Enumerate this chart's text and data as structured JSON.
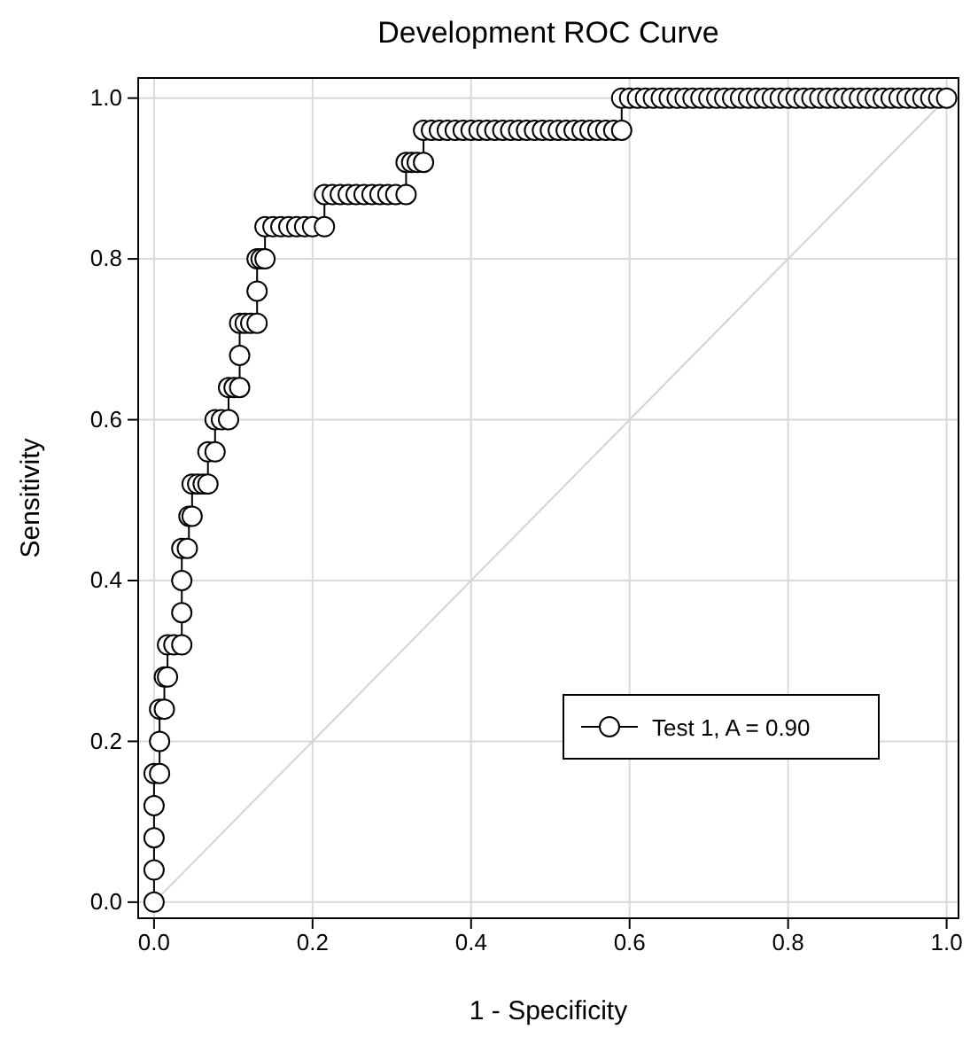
{
  "chart_data": {
    "type": "step",
    "title": "Development ROC Curve",
    "xlabel": "1 - Specificity",
    "ylabel": "Sensitivity",
    "xlim": [
      -0.02,
      1.015
    ],
    "ylim": [
      -0.02,
      1.025
    ],
    "xticks": [
      {
        "value": 0,
        "label": "0.0"
      },
      {
        "value": 0.2,
        "label": "0.2"
      },
      {
        "value": 0.4,
        "label": "0.4"
      },
      {
        "value": 0.6,
        "label": "0.6"
      },
      {
        "value": 0.8,
        "label": "0.8"
      },
      {
        "value": 1,
        "label": "1.0"
      }
    ],
    "yticks": [
      {
        "value": 0,
        "label": "0.0"
      },
      {
        "value": 0.2,
        "label": "0.2"
      },
      {
        "value": 0.4,
        "label": "0.4"
      },
      {
        "value": 0.6,
        "label": "0.6"
      },
      {
        "value": 0.8,
        "label": "0.8"
      },
      {
        "value": 1,
        "label": "1.0"
      }
    ],
    "grid": true,
    "legend": "bottom right",
    "series": [
      {
        "type": "line",
        "color": "#d3d3d3",
        "marker": "none",
        "x": [
          0,
          1
        ],
        "values": [
          0,
          1
        ]
      },
      {
        "name": "Test 1, A = 0.90",
        "color": "#000000",
        "marker": "circle",
        "x": [
          0,
          0,
          0,
          0,
          0,
          0.007,
          0.007,
          0.007,
          0.013,
          0.013,
          0.017,
          0.017,
          0.025,
          0.035,
          0.035,
          0.035,
          0.035,
          0.042,
          0.044,
          0.048,
          0.048,
          0.055,
          0.062,
          0.068,
          0.068,
          0.077,
          0.077,
          0.085,
          0.094,
          0.094,
          0.101,
          0.108,
          0.108,
          0.108,
          0.115,
          0.122,
          0.13,
          0.13,
          0.13,
          0.135,
          0.14,
          0.14,
          0.15,
          0.16,
          0.17,
          0.18,
          0.19,
          0.2,
          0.215,
          0.215,
          0.225,
          0.235,
          0.245,
          0.255,
          0.265,
          0.275,
          0.285,
          0.295,
          0.305,
          0.318,
          0.318,
          0.325,
          0.332,
          0.34,
          0.34,
          0.35,
          0.36,
          0.37,
          0.38,
          0.39,
          0.4,
          0.41,
          0.42,
          0.43,
          0.44,
          0.45,
          0.46,
          0.47,
          0.48,
          0.49,
          0.5,
          0.51,
          0.52,
          0.53,
          0.54,
          0.55,
          0.56,
          0.57,
          0.58,
          0.59,
          0.59,
          0.6,
          0.61,
          0.62,
          0.63,
          0.64,
          0.65,
          0.66,
          0.67,
          0.68,
          0.69,
          0.7,
          0.71,
          0.72,
          0.73,
          0.74,
          0.75,
          0.76,
          0.77,
          0.78,
          0.79,
          0.8,
          0.81,
          0.82,
          0.83,
          0.84,
          0.85,
          0.86,
          0.87,
          0.88,
          0.89,
          0.9,
          0.91,
          0.92,
          0.93,
          0.94,
          0.95,
          0.96,
          0.97,
          0.98,
          0.99,
          1.0
        ],
        "values": [
          0,
          0.04,
          0.08,
          0.12,
          0.16,
          0.16,
          0.2,
          0.24,
          0.24,
          0.28,
          0.28,
          0.32,
          0.32,
          0.32,
          0.36,
          0.4,
          0.44,
          0.44,
          0.48,
          0.48,
          0.52,
          0.52,
          0.52,
          0.52,
          0.56,
          0.56,
          0.6,
          0.6,
          0.6,
          0.64,
          0.64,
          0.64,
          0.68,
          0.72,
          0.72,
          0.72,
          0.72,
          0.76,
          0.8,
          0.8,
          0.8,
          0.84,
          0.84,
          0.84,
          0.84,
          0.84,
          0.84,
          0.84,
          0.84,
          0.88,
          0.88,
          0.88,
          0.88,
          0.88,
          0.88,
          0.88,
          0.88,
          0.88,
          0.88,
          0.88,
          0.92,
          0.92,
          0.92,
          0.92,
          0.96,
          0.96,
          0.96,
          0.96,
          0.96,
          0.96,
          0.96,
          0.96,
          0.96,
          0.96,
          0.96,
          0.96,
          0.96,
          0.96,
          0.96,
          0.96,
          0.96,
          0.96,
          0.96,
          0.96,
          0.96,
          0.96,
          0.96,
          0.96,
          0.96,
          0.96,
          1,
          1,
          1,
          1,
          1,
          1,
          1,
          1,
          1,
          1,
          1,
          1,
          1,
          1,
          1,
          1,
          1,
          1,
          1,
          1,
          1,
          1,
          1,
          1,
          1,
          1,
          1,
          1,
          1,
          1,
          1,
          1,
          1,
          1,
          1,
          1,
          1,
          1,
          1,
          1,
          1,
          1
        ]
      }
    ]
  }
}
